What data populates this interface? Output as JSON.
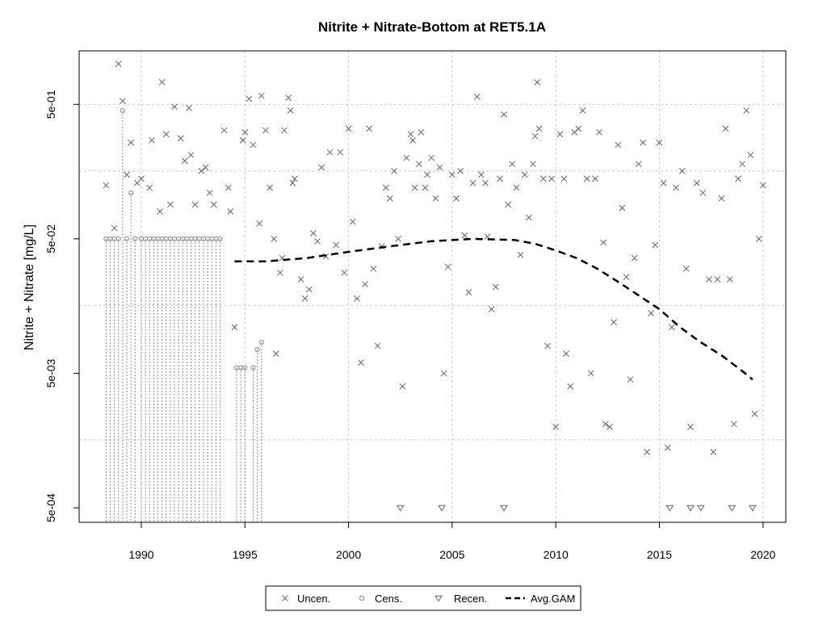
{
  "chart_data": {
    "type": "scatter",
    "title": "Nitrite + Nitrate-Bottom at RET5.1A",
    "xlabel": "",
    "ylabel": "Nitrite + Nitrate [mg/L]",
    "xlim": [
      1987.0,
      2021.1
    ],
    "ylim": [
      0.00039,
      1.25
    ],
    "y_scale": "log",
    "grid": true,
    "legend_position": "bottom",
    "x_ticks": [
      1990,
      1995,
      2000,
      2005,
      2010,
      2015,
      2020
    ],
    "x_tick_labels": [
      "1990",
      "1995",
      "2000",
      "2005",
      "2010",
      "2015",
      "2020"
    ],
    "y_ticks": [
      0.0005,
      0.005,
      0.05,
      0.5
    ],
    "y_tick_labels": [
      "5e-04",
      "5e-03",
      "5e-02",
      "5e-01"
    ],
    "y_grid": [
      0.0016,
      0.016,
      0.16,
      0.5
    ],
    "colors": {
      "points": "#5a6478",
      "censored": "#888888",
      "gam": "#000000",
      "grid": "#c8c8c8"
    },
    "legend": [
      {
        "label": "Uncen.",
        "symbol": "x"
      },
      {
        "label": "Cens.",
        "symbol": "circle"
      },
      {
        "label": "Recen.",
        "symbol": "triangle"
      },
      {
        "label": "Avg.GAM",
        "symbol": "dashed-line"
      }
    ],
    "series": [
      {
        "name": "Uncen.",
        "symbol": "x",
        "points": [
          [
            1988.3,
            0.125
          ],
          [
            1988.7,
            0.06
          ],
          [
            1988.9,
            1.0
          ],
          [
            1989.1,
            0.53
          ],
          [
            1989.3,
            0.15
          ],
          [
            1989.5,
            0.26
          ],
          [
            1989.8,
            0.13
          ],
          [
            1990.0,
            0.14
          ],
          [
            1990.4,
            0.12
          ],
          [
            1990.5,
            0.27
          ],
          [
            1990.9,
            0.08
          ],
          [
            1991.0,
            0.73
          ],
          [
            1991.2,
            0.3
          ],
          [
            1991.4,
            0.09
          ],
          [
            1991.6,
            0.48
          ],
          [
            1991.9,
            0.28
          ],
          [
            1992.1,
            0.19
          ],
          [
            1992.3,
            0.47
          ],
          [
            1992.4,
            0.21
          ],
          [
            1992.6,
            0.09
          ],
          [
            1992.9,
            0.16
          ],
          [
            1993.1,
            0.17
          ],
          [
            1993.3,
            0.11
          ],
          [
            1993.5,
            0.09
          ],
          [
            1994.0,
            0.32
          ],
          [
            1994.2,
            0.12
          ],
          [
            1994.3,
            0.08
          ],
          [
            1994.5,
            0.011
          ],
          [
            1994.9,
            0.27
          ],
          [
            1995.0,
            0.31
          ],
          [
            1995.2,
            0.55
          ],
          [
            1995.4,
            0.25
          ],
          [
            1995.7,
            0.065
          ],
          [
            1995.8,
            0.58
          ],
          [
            1996.0,
            0.32
          ],
          [
            1996.2,
            0.12
          ],
          [
            1996.4,
            0.05
          ],
          [
            1996.5,
            0.007
          ],
          [
            1996.7,
            0.028
          ],
          [
            1996.8,
            0.036
          ],
          [
            1996.9,
            0.32
          ],
          [
            1997.1,
            0.56
          ],
          [
            1997.2,
            0.45
          ],
          [
            1997.3,
            0.13
          ],
          [
            1997.4,
            0.14
          ],
          [
            1997.7,
            0.025
          ],
          [
            1997.9,
            0.018
          ],
          [
            1998.1,
            0.021
          ],
          [
            1998.3,
            0.055
          ],
          [
            1998.5,
            0.048
          ],
          [
            1998.7,
            0.17
          ],
          [
            1998.9,
            0.037
          ],
          [
            1999.1,
            0.22
          ],
          [
            1999.4,
            0.045
          ],
          [
            1999.6,
            0.22
          ],
          [
            1999.8,
            0.028
          ],
          [
            2000.0,
            0.33
          ],
          [
            2000.2,
            0.067
          ],
          [
            2000.4,
            0.018
          ],
          [
            2000.6,
            0.006
          ],
          [
            2000.8,
            0.023
          ],
          [
            2001.0,
            0.33
          ],
          [
            2001.2,
            0.03
          ],
          [
            2001.4,
            0.008
          ],
          [
            2001.6,
            0.044
          ],
          [
            2001.8,
            0.12
          ],
          [
            2002.0,
            0.1
          ],
          [
            2002.2,
            0.16
          ],
          [
            2002.4,
            0.05
          ],
          [
            2002.6,
            0.004
          ],
          [
            2002.8,
            0.2
          ],
          [
            2003.0,
            0.3
          ],
          [
            2003.1,
            0.27
          ],
          [
            2003.2,
            0.12
          ],
          [
            2003.4,
            0.18
          ],
          [
            2003.5,
            0.31
          ],
          [
            2003.7,
            0.12
          ],
          [
            2003.8,
            0.15
          ],
          [
            2004.0,
            0.2
          ],
          [
            2004.2,
            0.1
          ],
          [
            2004.4,
            0.17
          ],
          [
            2004.6,
            0.005
          ],
          [
            2004.8,
            0.031
          ],
          [
            2005.0,
            0.15
          ],
          [
            2005.2,
            0.1
          ],
          [
            2005.4,
            0.16
          ],
          [
            2005.6,
            0.053
          ],
          [
            2005.8,
            0.02
          ],
          [
            2006.0,
            0.13
          ],
          [
            2006.2,
            0.57
          ],
          [
            2006.4,
            0.15
          ],
          [
            2006.6,
            0.13
          ],
          [
            2006.7,
            0.052
          ],
          [
            2006.9,
            0.015
          ],
          [
            2007.1,
            0.022
          ],
          [
            2007.3,
            0.14
          ],
          [
            2007.5,
            0.42
          ],
          [
            2007.7,
            0.09
          ],
          [
            2007.9,
            0.18
          ],
          [
            2008.1,
            0.12
          ],
          [
            2008.3,
            0.038
          ],
          [
            2008.5,
            0.15
          ],
          [
            2008.7,
            0.072
          ],
          [
            2008.9,
            0.18
          ],
          [
            2009.0,
            0.29
          ],
          [
            2009.1,
            0.73
          ],
          [
            2009.2,
            0.33
          ],
          [
            2009.4,
            0.14
          ],
          [
            2009.6,
            0.008
          ],
          [
            2009.8,
            0.14
          ],
          [
            2010.0,
            0.002
          ],
          [
            2010.2,
            0.3
          ],
          [
            2010.4,
            0.14
          ],
          [
            2010.5,
            0.007
          ],
          [
            2010.7,
            0.004
          ],
          [
            2010.9,
            0.31
          ],
          [
            2011.1,
            0.33
          ],
          [
            2011.3,
            0.45
          ],
          [
            2011.5,
            0.14
          ],
          [
            2011.7,
            0.005
          ],
          [
            2011.9,
            0.14
          ],
          [
            2012.1,
            0.31
          ],
          [
            2012.3,
            0.047
          ],
          [
            2012.4,
            0.0021
          ],
          [
            2012.6,
            0.002
          ],
          [
            2012.8,
            0.012
          ],
          [
            2013.0,
            0.25
          ],
          [
            2013.2,
            0.085
          ],
          [
            2013.4,
            0.026
          ],
          [
            2013.6,
            0.0045
          ],
          [
            2013.8,
            0.036
          ],
          [
            2014.0,
            0.18
          ],
          [
            2014.2,
            0.26
          ],
          [
            2014.4,
            0.0013
          ],
          [
            2014.6,
            0.014
          ],
          [
            2014.8,
            0.045
          ],
          [
            2015.0,
            0.26
          ],
          [
            2015.2,
            0.13
          ],
          [
            2015.4,
            0.0014
          ],
          [
            2015.6,
            0.011
          ],
          [
            2015.8,
            0.12
          ],
          [
            2016.1,
            0.16
          ],
          [
            2016.3,
            0.03
          ],
          [
            2016.5,
            0.002
          ],
          [
            2016.8,
            0.13
          ],
          [
            2017.1,
            0.11
          ],
          [
            2017.4,
            0.025
          ],
          [
            2017.6,
            0.0013
          ],
          [
            2017.8,
            0.025
          ],
          [
            2018.0,
            0.1
          ],
          [
            2018.2,
            0.33
          ],
          [
            2018.4,
            0.025
          ],
          [
            2018.6,
            0.0021
          ],
          [
            2018.8,
            0.14
          ],
          [
            2019.0,
            0.18
          ],
          [
            2019.2,
            0.45
          ],
          [
            2019.4,
            0.21
          ],
          [
            2019.6,
            0.0025
          ],
          [
            2019.8,
            0.05
          ],
          [
            2020.0,
            0.125
          ]
        ]
      },
      {
        "name": "Cens.",
        "symbol": "circle",
        "points": [
          [
            1988.3,
            0.05
          ],
          [
            1988.5,
            0.05
          ],
          [
            1988.7,
            0.05
          ],
          [
            1988.9,
            0.05
          ],
          [
            1989.1,
            0.45
          ],
          [
            1989.3,
            0.05
          ],
          [
            1989.5,
            0.11
          ],
          [
            1989.7,
            0.05
          ],
          [
            1990.0,
            0.05
          ],
          [
            1990.2,
            0.05
          ],
          [
            1990.4,
            0.05
          ],
          [
            1990.6,
            0.05
          ],
          [
            1990.8,
            0.05
          ],
          [
            1991.0,
            0.05
          ],
          [
            1991.2,
            0.05
          ],
          [
            1991.4,
            0.05
          ],
          [
            1991.6,
            0.05
          ],
          [
            1991.8,
            0.05
          ],
          [
            1992.0,
            0.05
          ],
          [
            1992.2,
            0.05
          ],
          [
            1992.4,
            0.05
          ],
          [
            1992.6,
            0.05
          ],
          [
            1992.8,
            0.05
          ],
          [
            1993.0,
            0.05
          ],
          [
            1993.2,
            0.05
          ],
          [
            1993.4,
            0.05
          ],
          [
            1993.6,
            0.05
          ],
          [
            1993.8,
            0.05
          ],
          [
            1994.6,
            0.0055
          ],
          [
            1994.8,
            0.0055
          ],
          [
            1995.0,
            0.0055
          ],
          [
            1995.4,
            0.0055
          ],
          [
            1995.6,
            0.0075
          ],
          [
            1995.8,
            0.0085
          ]
        ]
      },
      {
        "name": "Recen.",
        "symbol": "triangle",
        "points": [
          [
            2002.5,
            0.0005
          ],
          [
            2004.5,
            0.0005
          ],
          [
            2007.5,
            0.0005
          ],
          [
            2015.5,
            0.0005
          ],
          [
            2016.5,
            0.0005
          ],
          [
            2017.0,
            0.0005
          ],
          [
            2018.5,
            0.0005
          ],
          [
            2019.5,
            0.0005
          ]
        ]
      },
      {
        "name": "Avg.GAM",
        "symbol": "dashed-line",
        "points": [
          [
            1994.5,
            0.034
          ],
          [
            1996.0,
            0.034
          ],
          [
            1998.0,
            0.036
          ],
          [
            2000.0,
            0.04
          ],
          [
            2002.0,
            0.044
          ],
          [
            2004.0,
            0.048
          ],
          [
            2006.0,
            0.05
          ],
          [
            2008.0,
            0.049
          ],
          [
            2009.0,
            0.046
          ],
          [
            2010.0,
            0.041
          ],
          [
            2011.0,
            0.036
          ],
          [
            2012.0,
            0.03
          ],
          [
            2013.0,
            0.024
          ],
          [
            2014.0,
            0.019
          ],
          [
            2015.0,
            0.015
          ],
          [
            2016.0,
            0.011
          ],
          [
            2017.0,
            0.0085
          ],
          [
            2018.0,
            0.0068
          ],
          [
            2019.0,
            0.0052
          ],
          [
            2019.5,
            0.0045
          ]
        ]
      }
    ]
  }
}
